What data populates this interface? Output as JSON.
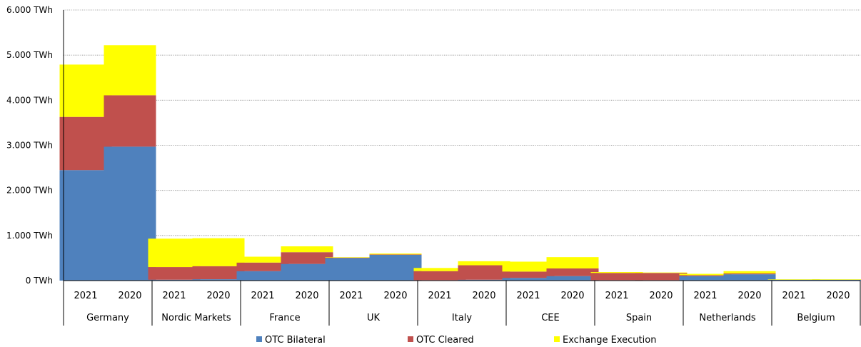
{
  "chart_data": {
    "type": "bar",
    "stacked": true,
    "title": "",
    "xlabel": "",
    "ylabel": "",
    "ylim": [
      0,
      6000
    ],
    "yticks": [
      0,
      1000,
      2000,
      3000,
      4000,
      5000,
      6000
    ],
    "ytick_labels": [
      "0 TWh",
      "1.000 TWh",
      "2.000 TWh",
      "3.000 TWh",
      "4.000 TWh",
      "5.000 TWh",
      "6.000 TWh"
    ],
    "grid": true,
    "legend_position": "bottom",
    "groups": [
      "Germany",
      "Nordic Markets",
      "France",
      "UK",
      "Italy",
      "CEE",
      "Spain",
      "Netherlands",
      "Belgium"
    ],
    "years": [
      "2021",
      "2020"
    ],
    "categories": [
      "Germany 2021",
      "Germany 2020",
      "Nordic Markets 2021",
      "Nordic Markets 2020",
      "France 2021",
      "France 2020",
      "UK 2021",
      "UK 2020",
      "Italy 2021",
      "Italy 2020",
      "CEE 2021",
      "CEE 2020",
      "Spain 2021",
      "Spain 2020",
      "Netherlands 2021",
      "Netherlands 2020",
      "Belgium 2021",
      "Belgium 2020"
    ],
    "series": [
      {
        "name": "OTC Bilateral",
        "color": "#4f81bd",
        "values": [
          2450,
          2970,
          20,
          30,
          210,
          370,
          500,
          570,
          10,
          20,
          60,
          100,
          10,
          10,
          100,
          140,
          20,
          20
        ]
      },
      {
        "name": "OTC Cleared",
        "color": "#c0504d",
        "values": [
          1180,
          1140,
          280,
          290,
          190,
          260,
          10,
          10,
          200,
          320,
          140,
          170,
          160,
          160,
          20,
          20,
          0,
          0
        ]
      },
      {
        "name": "Exchange Execution",
        "color": "#ffff00",
        "values": [
          1160,
          1110,
          630,
          620,
          130,
          130,
          10,
          20,
          70,
          90,
          220,
          250,
          20,
          10,
          30,
          50,
          10,
          10
        ]
      }
    ]
  }
}
